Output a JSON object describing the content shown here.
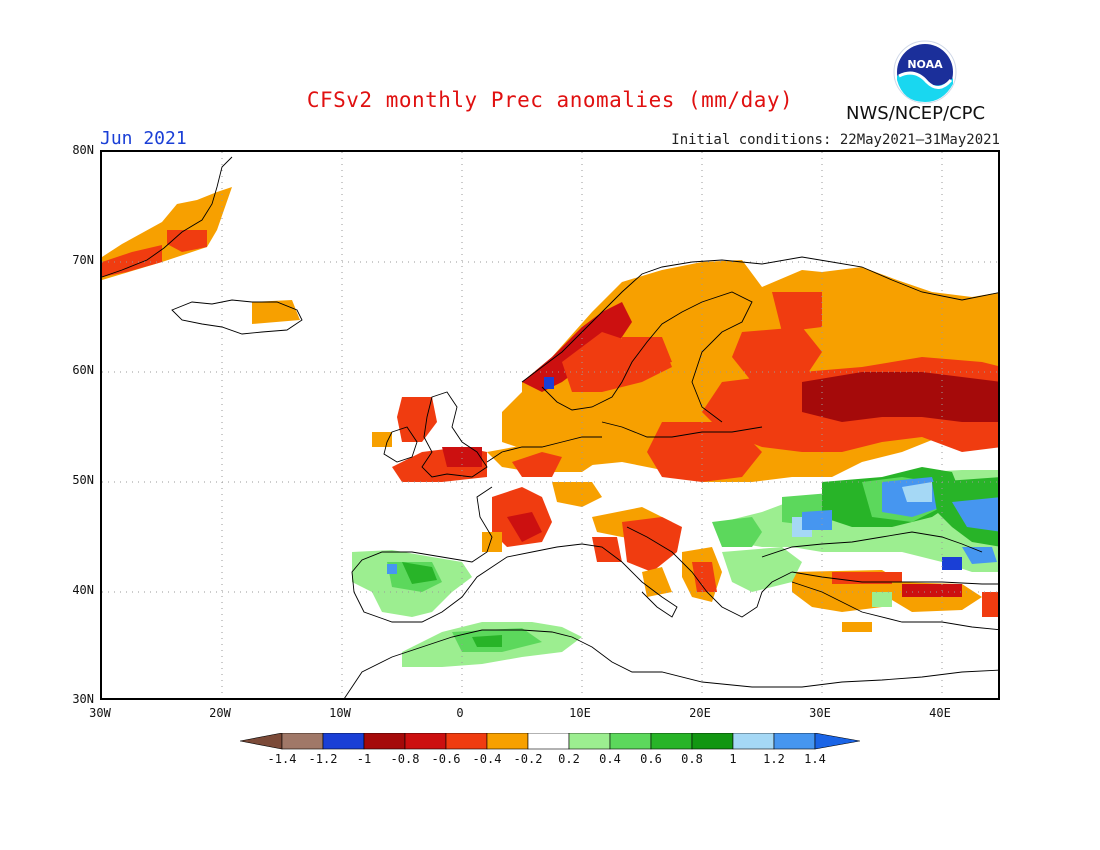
{
  "title": "CFSv2 monthly Prec anomalies (mm/day)",
  "month": "Jun 2021",
  "initial_conditions": "Initial conditions: 22May2021–31May2021",
  "agency": "NWS/NCEP/CPC",
  "logo_text": "NOAA",
  "lat_labels": [
    "80N",
    "70N",
    "60N",
    "50N",
    "40N",
    "30N"
  ],
  "lon_labels": [
    "30W",
    "20W",
    "10W",
    "0",
    "10E",
    "20E",
    "30E",
    "40E"
  ],
  "colorbar": {
    "ticks": [
      "-1.4",
      "-1.2",
      "-1",
      "-0.8",
      "-0.6",
      "-0.4",
      "-0.2",
      "0.2",
      "0.4",
      "0.6",
      "0.8",
      "1",
      "1.2",
      "1.4"
    ],
    "colors": {
      "lt_-1.4": "#7b4a38",
      "-1.4_-1.2": "#a07868",
      "-1.2_-1": "#1a3fd6",
      "-1_-0.8": "#a50a0a",
      "-0.8_-0.6": "#cc1010",
      "-0.6_-0.4": "#f03c10",
      "-0.4_-0.2": "#f7a000",
      "-0.2_0.2": "#ffffff",
      "0.2_0.4": "#9cee90",
      "0.4_0.6": "#5cd85c",
      "0.6_0.8": "#28b428",
      "0.8_1": "#129612",
      "1_1.2": "#a5d8f5",
      "1.2_1.4": "#4696f0",
      "gt_1.4": "#1a64e6"
    }
  },
  "map_extent": {
    "lon": [
      -30,
      45
    ],
    "lat": [
      30,
      80
    ]
  }
}
